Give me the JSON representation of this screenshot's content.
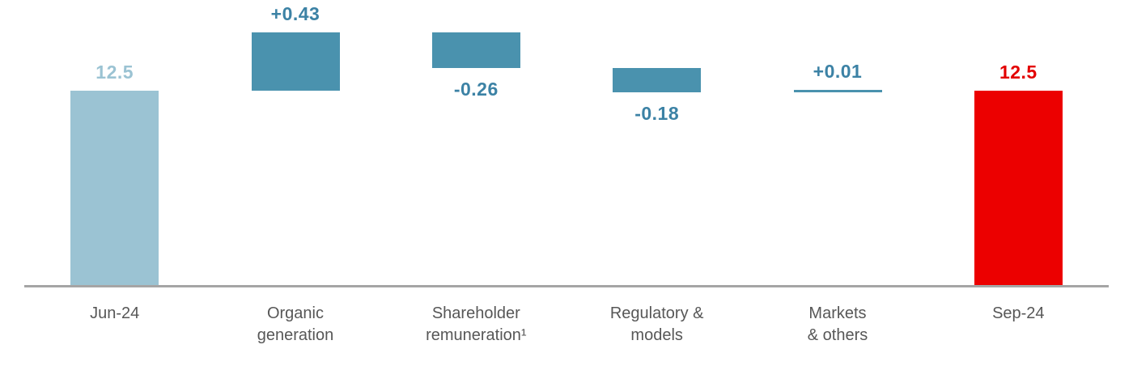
{
  "chart_data": {
    "type": "bar",
    "subtype": "waterfall",
    "title": "",
    "xlabel": "",
    "ylabel": "",
    "legend": null,
    "grid": false,
    "baseline_axis": true,
    "categories": [
      "Jun-24",
      "Organic generation",
      "Shareholder remuneration¹",
      "Regulatory & models",
      "Markets & others",
      "Sep-24"
    ],
    "values": [
      12.5,
      0.43,
      -0.26,
      -0.18,
      0.01,
      12.5
    ],
    "items": [
      {
        "slug": "jun-24",
        "role": "start",
        "value": 12.5,
        "label": "12.5",
        "category_lines": [
          "Jun-24"
        ]
      },
      {
        "slug": "organic-generation",
        "role": "delta",
        "value": 0.43,
        "label": "+0.43",
        "category_lines": [
          "Organic",
          "generation"
        ]
      },
      {
        "slug": "shareholder-remuneration",
        "role": "delta",
        "value": -0.26,
        "label": "-0.26",
        "category_lines": [
          "Shareholder",
          "remuneration¹"
        ]
      },
      {
        "slug": "regulatory-models",
        "role": "delta",
        "value": -0.18,
        "label": "-0.18",
        "category_lines": [
          "Regulatory &",
          "models"
        ]
      },
      {
        "slug": "markets-others",
        "role": "delta",
        "value": 0.01,
        "label": "+0.01",
        "category_lines": [
          "Markets",
          "& others"
        ]
      },
      {
        "slug": "sep-24",
        "role": "end",
        "value": 12.5,
        "label": "12.5",
        "category_lines": [
          "Sep-24"
        ]
      }
    ],
    "colors": {
      "start_bar": "#9bc3d3",
      "start_label": "#9bc3d3",
      "delta_bar": "#4a92ae",
      "delta_label": "#3c82a5",
      "end_bar": "#ec0000",
      "end_label": "#e30000",
      "baseline": "#a5a5a5",
      "category_text": "#575757",
      "background": "#ffffff"
    }
  }
}
